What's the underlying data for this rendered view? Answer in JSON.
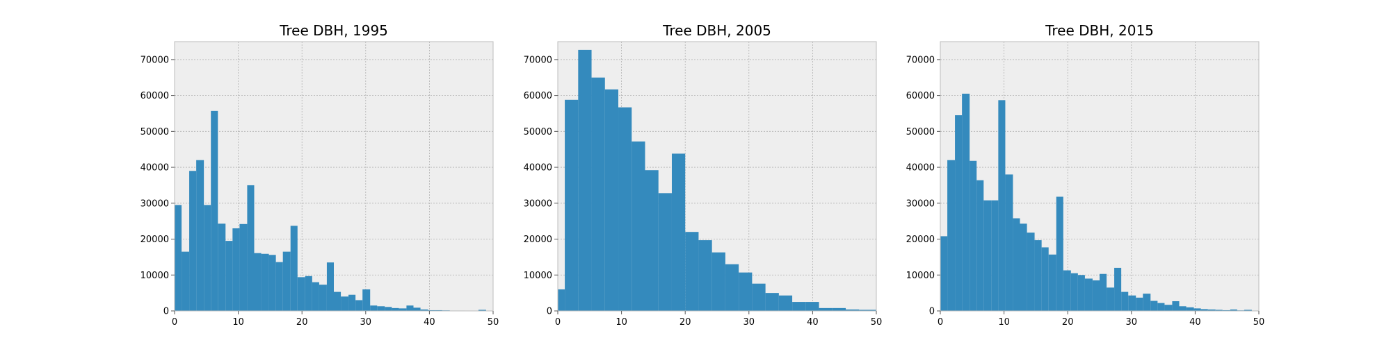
{
  "chart_data": [
    {
      "type": "bar",
      "title": "Tree DBH, 1995",
      "xlabel": "",
      "ylabel": "",
      "xlim": [
        0,
        50
      ],
      "ylim": [
        0,
        75000
      ],
      "xticks": [
        "0",
        "10",
        "20",
        "30",
        "40",
        "50"
      ],
      "yticks": [
        "0",
        "10000",
        "20000",
        "30000",
        "40000",
        "50000",
        "60000",
        "70000"
      ],
      "grid": true,
      "bin_edges": [
        0,
        1.1,
        2.3,
        3.4,
        4.6,
        5.7,
        6.8,
        8.0,
        9.1,
        10.2,
        11.4,
        12.5,
        13.6,
        14.8,
        15.9,
        17.0,
        18.2,
        19.3,
        20.5,
        21.6,
        22.7,
        23.9,
        25.0,
        26.1,
        27.3,
        28.4,
        29.5,
        30.7,
        31.8,
        33.0,
        34.1,
        35.2,
        36.4,
        37.5,
        38.6,
        39.8,
        40.9,
        42.0,
        43.2,
        44.3,
        45.5,
        46.6,
        47.7,
        48.9,
        50.0
      ],
      "values": [
        29500,
        16500,
        39000,
        42000,
        29500,
        55700,
        24300,
        19500,
        23000,
        24200,
        35000,
        16100,
        15900,
        15600,
        13600,
        16500,
        23700,
        9400,
        9700,
        8000,
        7300,
        13500,
        5300,
        4000,
        4500,
        3000,
        6000,
        1500,
        1300,
        1100,
        800,
        700,
        1500,
        900,
        400,
        200,
        200,
        150,
        100,
        100,
        80,
        80,
        300,
        50
      ]
    },
    {
      "type": "bar",
      "title": "Tree DBH, 2005",
      "xlabel": "",
      "ylabel": "",
      "xlim": [
        0,
        50
      ],
      "ylim": [
        0,
        75000
      ],
      "xticks": [
        "0",
        "10",
        "20",
        "30",
        "40",
        "50"
      ],
      "yticks": [
        "0",
        "10000",
        "20000",
        "30000",
        "40000",
        "50000",
        "60000",
        "70000"
      ],
      "grid": true,
      "bin_edges": [
        0,
        1.1,
        3.2,
        5.3,
        7.4,
        9.5,
        11.6,
        13.7,
        15.8,
        17.9,
        20.0,
        22.1,
        24.2,
        26.3,
        28.4,
        30.5,
        32.6,
        34.7,
        36.8,
        38.9,
        41.0,
        43.1,
        45.2,
        47.3,
        50.0
      ],
      "values": [
        6000,
        58800,
        72700,
        65000,
        61700,
        56700,
        47200,
        39200,
        32800,
        43800,
        22000,
        19700,
        16300,
        13000,
        10700,
        7600,
        5000,
        4300,
        2500,
        2500,
        800,
        800,
        400,
        300
      ]
    },
    {
      "type": "bar",
      "title": "Tree DBH, 2015",
      "xlabel": "",
      "ylabel": "",
      "xlim": [
        0,
        50
      ],
      "ylim": [
        0,
        75000
      ],
      "xticks": [
        "0",
        "10",
        "20",
        "30",
        "40",
        "50"
      ],
      "yticks": [
        "0",
        "10000",
        "20000",
        "30000",
        "40000",
        "50000",
        "60000",
        "70000"
      ],
      "grid": true,
      "bin_edges": [
        0,
        1.1,
        2.3,
        3.4,
        4.6,
        5.7,
        6.8,
        8.0,
        9.1,
        10.2,
        11.4,
        12.5,
        13.6,
        14.8,
        15.9,
        17.0,
        18.2,
        19.3,
        20.5,
        21.6,
        22.7,
        23.9,
        25.0,
        26.1,
        27.3,
        28.4,
        29.5,
        30.7,
        31.8,
        33.0,
        34.1,
        35.2,
        36.4,
        37.5,
        38.6,
        39.8,
        40.9,
        42.0,
        43.2,
        44.3,
        45.5,
        46.6,
        47.7,
        48.9,
        50.0
      ],
      "values": [
        20800,
        42000,
        54500,
        60500,
        41800,
        36400,
        30800,
        30800,
        58700,
        38000,
        25800,
        24300,
        21800,
        19700,
        17700,
        15700,
        31800,
        11300,
        10500,
        10000,
        9000,
        8500,
        10300,
        6500,
        12000,
        5300,
        4300,
        3700,
        4800,
        2800,
        2200,
        1700,
        2700,
        1300,
        1000,
        700,
        500,
        400,
        300,
        200,
        400,
        150,
        300,
        100
      ]
    }
  ],
  "style": {
    "bar_color": "#348abd",
    "axes_background": "#eeeeee",
    "grid_color": "#b0b0b0",
    "spine_color": "#bcbcbc"
  }
}
